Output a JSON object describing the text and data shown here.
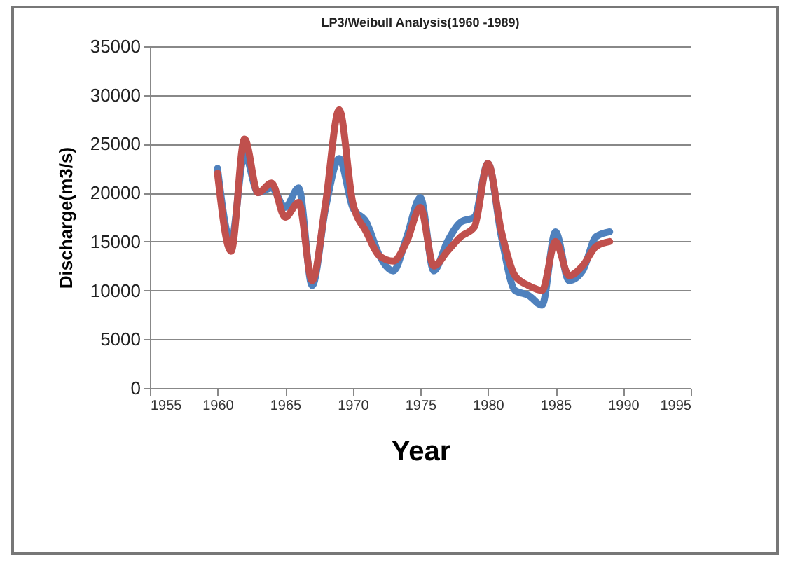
{
  "chart_data": {
    "type": "line",
    "title": "LP3/Weibull   Analysis(1960   -1989)",
    "xlabel": "Year",
    "ylabel": "Discharge(m3/s)",
    "x": [
      1960,
      1961,
      1962,
      1963,
      1964,
      1965,
      1966,
      1967,
      1968,
      1969,
      1970,
      1971,
      1972,
      1973,
      1974,
      1975,
      1976,
      1977,
      1978,
      1979,
      1980,
      1981,
      1982,
      1983,
      1984,
      1985,
      1986,
      1987,
      1988,
      1989
    ],
    "series": [
      {
        "color": "#4f81bd",
        "values": [
          22500,
          15000,
          24000,
          20000,
          20500,
          18500,
          20500,
          10500,
          18500,
          23500,
          18500,
          17000,
          13500,
          12000,
          15500,
          19500,
          12000,
          15000,
          17000,
          17500,
          23000,
          15500,
          10000,
          9500,
          8500,
          16000,
          11000,
          12000,
          15500,
          16000
        ]
      },
      {
        "color": "#c0504d",
        "values": [
          22000,
          14000,
          25500,
          20000,
          21000,
          17500,
          19000,
          11000,
          19000,
          28500,
          19000,
          16000,
          13500,
          13000,
          15000,
          18500,
          12500,
          14000,
          15500,
          16500,
          23000,
          16000,
          11500,
          10500,
          10000,
          15000,
          11500,
          12500,
          14500,
          15000
        ]
      }
    ],
    "xlim": [
      1955,
      1995
    ],
    "xticks": [
      1955,
      1960,
      1965,
      1970,
      1975,
      1980,
      1985,
      1990,
      1995
    ],
    "ylim": [
      0,
      35000
    ],
    "yticks": [
      0,
      5000,
      10000,
      15000,
      20000,
      25000,
      30000,
      35000
    ],
    "grid": "y",
    "legend": false
  }
}
